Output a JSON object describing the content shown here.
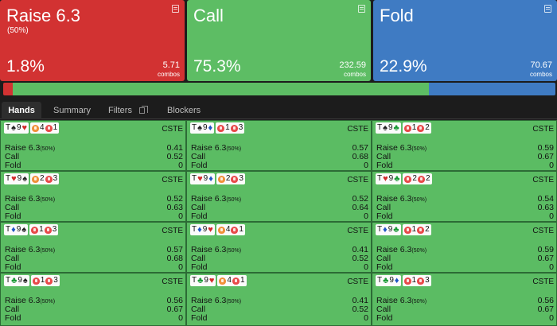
{
  "actions": [
    {
      "title": "Raise 6.3",
      "subtitle": "(50%)",
      "percent": "1.8%",
      "combos": "5.71",
      "combos_label": "combos",
      "color": "#d23232"
    },
    {
      "title": "Call",
      "subtitle": "",
      "percent": "75.3%",
      "combos": "232.59",
      "combos_label": "combos",
      "color": "#5dbd64"
    },
    {
      "title": "Fold",
      "subtitle": "",
      "percent": "22.9%",
      "combos": "70.67",
      "combos_label": "combos",
      "color": "#3f7bc3"
    }
  ],
  "aggregate_bar": [
    {
      "action": "Raise",
      "fraction": 0.018,
      "color": "#d23232"
    },
    {
      "action": "Call",
      "fraction": 0.753,
      "color": "#5dbd64"
    },
    {
      "action": "Fold",
      "fraction": 0.229,
      "color": "#3f7bc3"
    }
  ],
  "tabs": [
    {
      "label": "Hands",
      "active": true
    },
    {
      "label": "Summary",
      "active": false
    },
    {
      "label": "Filters",
      "active": false,
      "icon": "copy-icon"
    },
    {
      "label": "Blockers",
      "active": false
    }
  ],
  "labels": {
    "raise": "Raise 6.3",
    "raise_pct": "(50%)",
    "call": "Call",
    "fold": "Fold",
    "tag": "CSTE"
  },
  "hands": [
    {
      "cards": [
        {
          "rank": "T",
          "suit": "♠"
        },
        {
          "rank": "9",
          "suit": "♥"
        }
      ],
      "c1": "4",
      "c2": "1",
      "c1_color": "orange",
      "raise": "0.41",
      "call": "0.52",
      "fold": "0"
    },
    {
      "cards": [
        {
          "rank": "T",
          "suit": "♠"
        },
        {
          "rank": "9",
          "suit": "♦"
        }
      ],
      "c1": "1",
      "c2": "3",
      "c1_color": "red",
      "raise": "0.57",
      "call": "0.68",
      "fold": "0"
    },
    {
      "cards": [
        {
          "rank": "T",
          "suit": "♠"
        },
        {
          "rank": "9",
          "suit": "♣"
        }
      ],
      "c1": "1",
      "c2": "2",
      "c1_color": "red",
      "raise": "0.59",
      "call": "0.67",
      "fold": "0"
    },
    {
      "cards": [
        {
          "rank": "T",
          "suit": "♥"
        },
        {
          "rank": "9",
          "suit": "♠"
        }
      ],
      "c1": "2",
      "c2": "3",
      "c1_color": "orange",
      "raise": "0.52",
      "call": "0.63",
      "fold": "0"
    },
    {
      "cards": [
        {
          "rank": "T",
          "suit": "♥"
        },
        {
          "rank": "9",
          "suit": "♦"
        }
      ],
      "c1": "2",
      "c2": "3",
      "c1_color": "orange",
      "raise": "0.52",
      "call": "0.64",
      "fold": "0"
    },
    {
      "cards": [
        {
          "rank": "T",
          "suit": "♥"
        },
        {
          "rank": "9",
          "suit": "♣"
        }
      ],
      "c1": "2",
      "c2": "2",
      "c1_color": "red",
      "raise": "0.54",
      "call": "0.63",
      "fold": "0"
    },
    {
      "cards": [
        {
          "rank": "T",
          "suit": "♦"
        },
        {
          "rank": "9",
          "suit": "♠"
        }
      ],
      "c1": "1",
      "c2": "3",
      "c1_color": "red",
      "raise": "0.57",
      "call": "0.68",
      "fold": "0"
    },
    {
      "cards": [
        {
          "rank": "T",
          "suit": "♦"
        },
        {
          "rank": "9",
          "suit": "♥"
        }
      ],
      "c1": "4",
      "c2": "1",
      "c1_color": "orange",
      "raise": "0.41",
      "call": "0.52",
      "fold": "0"
    },
    {
      "cards": [
        {
          "rank": "T",
          "suit": "♦"
        },
        {
          "rank": "9",
          "suit": "♣"
        }
      ],
      "c1": "1",
      "c2": "2",
      "c1_color": "red",
      "raise": "0.59",
      "call": "0.67",
      "fold": "0"
    },
    {
      "cards": [
        {
          "rank": "T",
          "suit": "♣"
        },
        {
          "rank": "9",
          "suit": "♠"
        }
      ],
      "c1": "1",
      "c2": "3",
      "c1_color": "red",
      "raise": "0.56",
      "call": "0.67",
      "fold": "0"
    },
    {
      "cards": [
        {
          "rank": "T",
          "suit": "♣"
        },
        {
          "rank": "9",
          "suit": "♥"
        }
      ],
      "c1": "4",
      "c2": "1",
      "c1_color": "orange",
      "raise": "0.41",
      "call": "0.52",
      "fold": "0"
    },
    {
      "cards": [
        {
          "rank": "T",
          "suit": "♣"
        },
        {
          "rank": "9",
          "suit": "♦"
        }
      ],
      "c1": "1",
      "c2": "3",
      "c1_color": "red",
      "raise": "0.56",
      "call": "0.67",
      "fold": "0"
    }
  ]
}
